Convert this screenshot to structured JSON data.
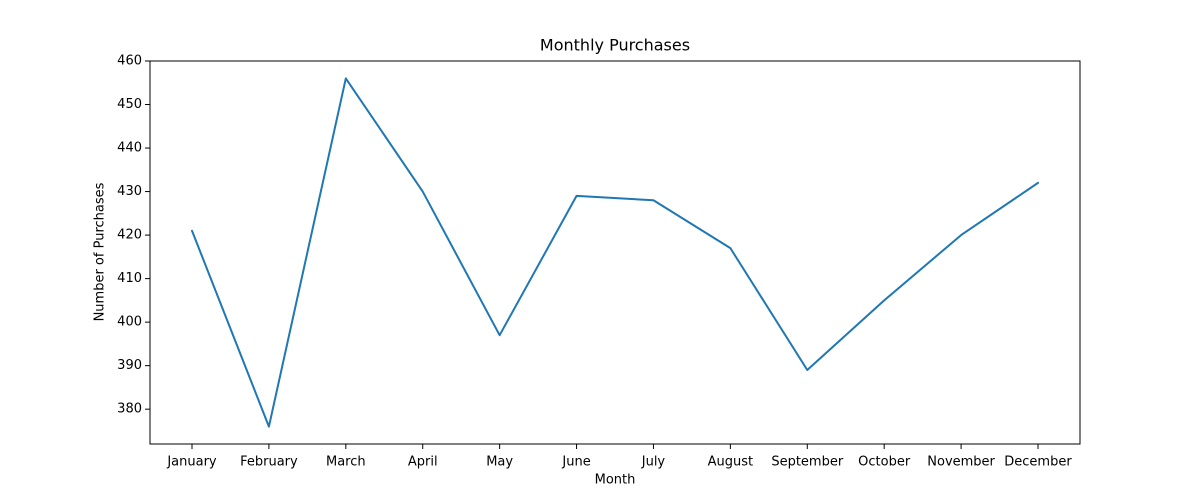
{
  "chart_data": {
    "type": "line",
    "title": "Monthly Purchases",
    "xlabel": "Month",
    "ylabel": "Number of Purchases",
    "categories": [
      "January",
      "February",
      "March",
      "April",
      "May",
      "June",
      "July",
      "August",
      "September",
      "October",
      "November",
      "December"
    ],
    "series": [
      {
        "values": [
          421,
          376,
          456,
          430,
          397,
          429,
          428,
          417,
          389,
          405,
          420,
          432
        ]
      }
    ],
    "ylim": [
      372,
      460
    ],
    "yticks": [
      380,
      390,
      400,
      410,
      420,
      430,
      440,
      450,
      460
    ],
    "grid": false,
    "legend": "none",
    "colors": {
      "line": "#1f77b4",
      "axes": "#000000",
      "background": "#ffffff"
    }
  }
}
